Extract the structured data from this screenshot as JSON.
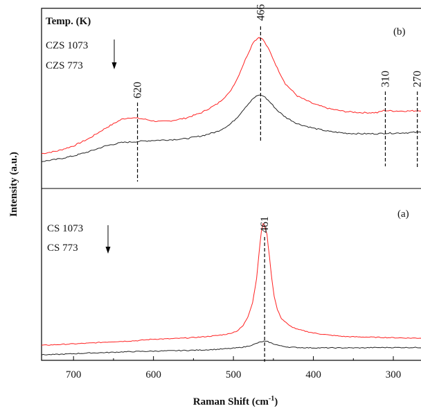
{
  "chart_data": {
    "type": "line",
    "xlabel": "Raman Shift (cm",
    "xlabel_sup": "-1",
    "xlabel_end": ")",
    "ylabel": "Intensity (a.u.)",
    "xlim": [
      740,
      255
    ],
    "x_reversed": true,
    "x_ticks": [
      700,
      600,
      500,
      400,
      300
    ],
    "grid": false,
    "panels": [
      {
        "id": "b",
        "label": "(b)",
        "legend_title": "Temp. (K)",
        "legend_entries": [
          "CZS 1073",
          "CZS 773"
        ],
        "legend_arrow": "down",
        "peaks": [
          {
            "x": 620,
            "label": "620"
          },
          {
            "x": 466,
            "label": "466"
          },
          {
            "x": 310,
            "label": "310"
          },
          {
            "x": 270,
            "label": "270"
          }
        ],
        "series": [
          {
            "name": "CZS 1073",
            "color": "#ff2020",
            "points": [
              [
                740,
                7
              ],
              [
                720,
                9.5
              ],
              [
                700,
                14
              ],
              [
                680,
                21
              ],
              [
                660,
                30
              ],
              [
                640,
                38
              ],
              [
                630,
                39.5
              ],
              [
                620,
                39
              ],
              [
                610,
                38
              ],
              [
                600,
                36.5
              ],
              [
                590,
                36
              ],
              [
                580,
                36.5
              ],
              [
                560,
                39
              ],
              [
                540,
                44
              ],
              [
                520,
                52
              ],
              [
                505,
                62
              ],
              [
                495,
                75
              ],
              [
                485,
                92
              ],
              [
                475,
                108
              ],
              [
                468,
                112
              ],
              [
                463,
                110
              ],
              [
                455,
                100
              ],
              [
                445,
                84
              ],
              [
                435,
                70
              ],
              [
                420,
                59
              ],
              [
                400,
                52
              ],
              [
                380,
                47.5
              ],
              [
                360,
                45
              ],
              [
                340,
                44
              ],
              [
                320,
                44
              ],
              [
                312,
                46
              ],
              [
                300,
                45.5
              ],
              [
                280,
                45.5
              ],
              [
                265,
                46
              ],
              [
                255,
                45
              ]
            ]
          },
          {
            "name": "CZS 773",
            "color": "#222222",
            "points": [
              [
                740,
                0
              ],
              [
                720,
                2
              ],
              [
                700,
                5
              ],
              [
                680,
                9
              ],
              [
                660,
                14
              ],
              [
                640,
                17
              ],
              [
                620,
                18
              ],
              [
                600,
                19
              ],
              [
                580,
                19.5
              ],
              [
                560,
                20.5
              ],
              [
                540,
                23
              ],
              [
                520,
                27
              ],
              [
                505,
                33
              ],
              [
                495,
                40
              ],
              [
                485,
                49
              ],
              [
                475,
                57
              ],
              [
                468,
                60
              ],
              [
                462,
                59
              ],
              [
                455,
                54
              ],
              [
                445,
                46
              ],
              [
                435,
                40
              ],
              [
                420,
                34
              ],
              [
                400,
                30
              ],
              [
                380,
                27
              ],
              [
                360,
                25.5
              ],
              [
                340,
                25
              ],
              [
                320,
                25
              ],
              [
                310,
                25.5
              ],
              [
                300,
                25.5
              ],
              [
                280,
                26
              ],
              [
                265,
                26.5
              ],
              [
                255,
                26
              ]
            ]
          }
        ]
      },
      {
        "id": "a",
        "label": "(a)",
        "legend_entries": [
          "CS 1073",
          "CS 773"
        ],
        "legend_arrow": "down",
        "peaks": [
          {
            "x": 461,
            "label": "461"
          }
        ],
        "series": [
          {
            "name": "CS 1073",
            "color": "#ff2020",
            "points": [
              [
                740,
                13
              ],
              [
                720,
                14
              ],
              [
                700,
                15
              ],
              [
                680,
                16
              ],
              [
                660,
                17.5
              ],
              [
                640,
                18.5
              ],
              [
                620,
                19.5
              ],
              [
                600,
                21.5
              ],
              [
                580,
                22
              ],
              [
                560,
                23
              ],
              [
                540,
                24.5
              ],
              [
                520,
                26.5
              ],
              [
                505,
                29
              ],
              [
                495,
                33
              ],
              [
                488,
                40
              ],
              [
                482,
                52
              ],
              [
                476,
                72
              ],
              [
                471,
                105
              ],
              [
                468,
                140
              ],
              [
                465,
                170
              ],
              [
                463,
                180
              ],
              [
                461,
                178
              ],
              [
                458,
                165
              ],
              [
                455,
                135
              ],
              [
                452,
                105
              ],
              [
                449,
                80
              ],
              [
                445,
                62
              ],
              [
                440,
                50
              ],
              [
                430,
                40
              ],
              [
                420,
                35
              ],
              [
                400,
                30
              ],
              [
                380,
                27
              ],
              [
                360,
                25
              ],
              [
                340,
                24.5
              ],
              [
                320,
                24
              ],
              [
                300,
                23.5
              ],
              [
                280,
                23
              ],
              [
                255,
                23
              ]
            ]
          },
          {
            "name": "CS 773",
            "color": "#222222",
            "points": [
              [
                740,
                0
              ],
              [
                720,
                0.5
              ],
              [
                700,
                1.5
              ],
              [
                680,
                2.5
              ],
              [
                660,
                3
              ],
              [
                640,
                4
              ],
              [
                620,
                4.5
              ],
              [
                600,
                5
              ],
              [
                580,
                5.5
              ],
              [
                560,
                6
              ],
              [
                540,
                6.5
              ],
              [
                520,
                7.5
              ],
              [
                500,
                9
              ],
              [
                485,
                11
              ],
              [
                475,
                14
              ],
              [
                468,
                17
              ],
              [
                462,
                18.5
              ],
              [
                457,
                18
              ],
              [
                450,
                15
              ],
              [
                440,
                12
              ],
              [
                430,
                10.5
              ],
              [
                420,
                10
              ],
              [
                400,
                9.5
              ],
              [
                380,
                9.5
              ],
              [
                360,
                9.5
              ],
              [
                340,
                9.5
              ],
              [
                320,
                10
              ],
              [
                300,
                10
              ],
              [
                280,
                10
              ],
              [
                255,
                10
              ]
            ]
          }
        ]
      }
    ]
  }
}
